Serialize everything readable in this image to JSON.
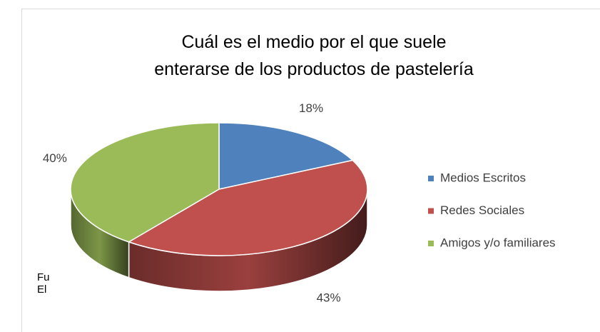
{
  "chart_data": {
    "type": "pie3d",
    "title": "Cuál es el medio por el que suele enterarse de los productos de pastelería",
    "categories": [
      "Medios Escritos",
      "Redes Sociales",
      "Amigos y/o familiares"
    ],
    "values": [
      18,
      43,
      40
    ],
    "value_labels": [
      "18%",
      "43%",
      "40%"
    ],
    "colors": [
      "#4f81bd",
      "#c0504d",
      "#9bbb59"
    ],
    "legend": "right"
  },
  "background_text": [
    "Fu",
    "El"
  ]
}
